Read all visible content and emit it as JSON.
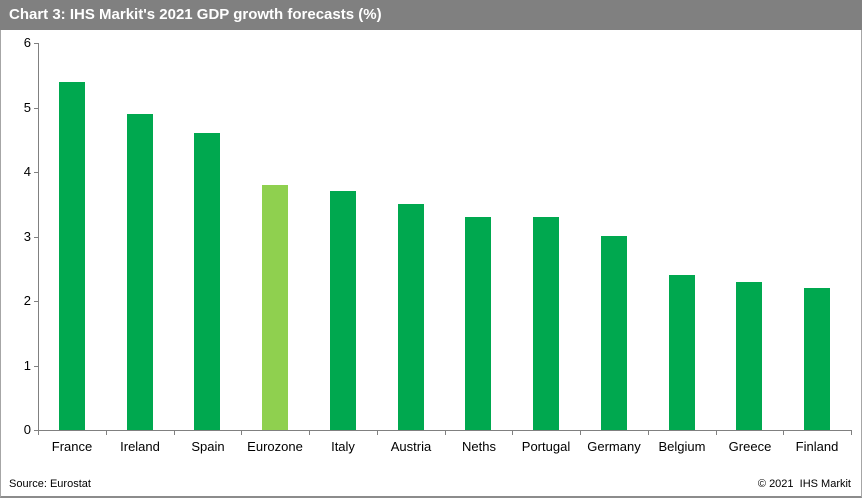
{
  "header": {
    "title": "Chart 3: IHS Markit's 2021 GDP growth forecasts (%)"
  },
  "footer": {
    "source": "Source: Eurostat",
    "copyright": "© 2021  IHS Markit"
  },
  "chart_data": {
    "type": "bar",
    "title": "Chart 3: IHS Markit's 2021 GDP growth forecasts (%)",
    "categories": [
      "France",
      "Ireland",
      "Spain",
      "Eurozone",
      "Italy",
      "Austria",
      "Neths",
      "Portugal",
      "Germany",
      "Belgium",
      "Greece",
      "Finland"
    ],
    "values": [
      5.4,
      4.9,
      4.6,
      3.8,
      3.7,
      3.5,
      3.3,
      3.3,
      3.0,
      2.4,
      2.3,
      2.2
    ],
    "highlight_category": "Eurozone",
    "xlabel": "",
    "ylabel": "",
    "ylim": [
      0,
      6
    ],
    "yticks": [
      0,
      1,
      2,
      3,
      4,
      5,
      6
    ],
    "grid": false,
    "legend": false,
    "colors": {
      "bar": "#00A84F",
      "highlight_bar": "#8FD04F",
      "axis": "#808080",
      "header_bg": "#808080",
      "header_text": "#FFFFFF"
    }
  }
}
